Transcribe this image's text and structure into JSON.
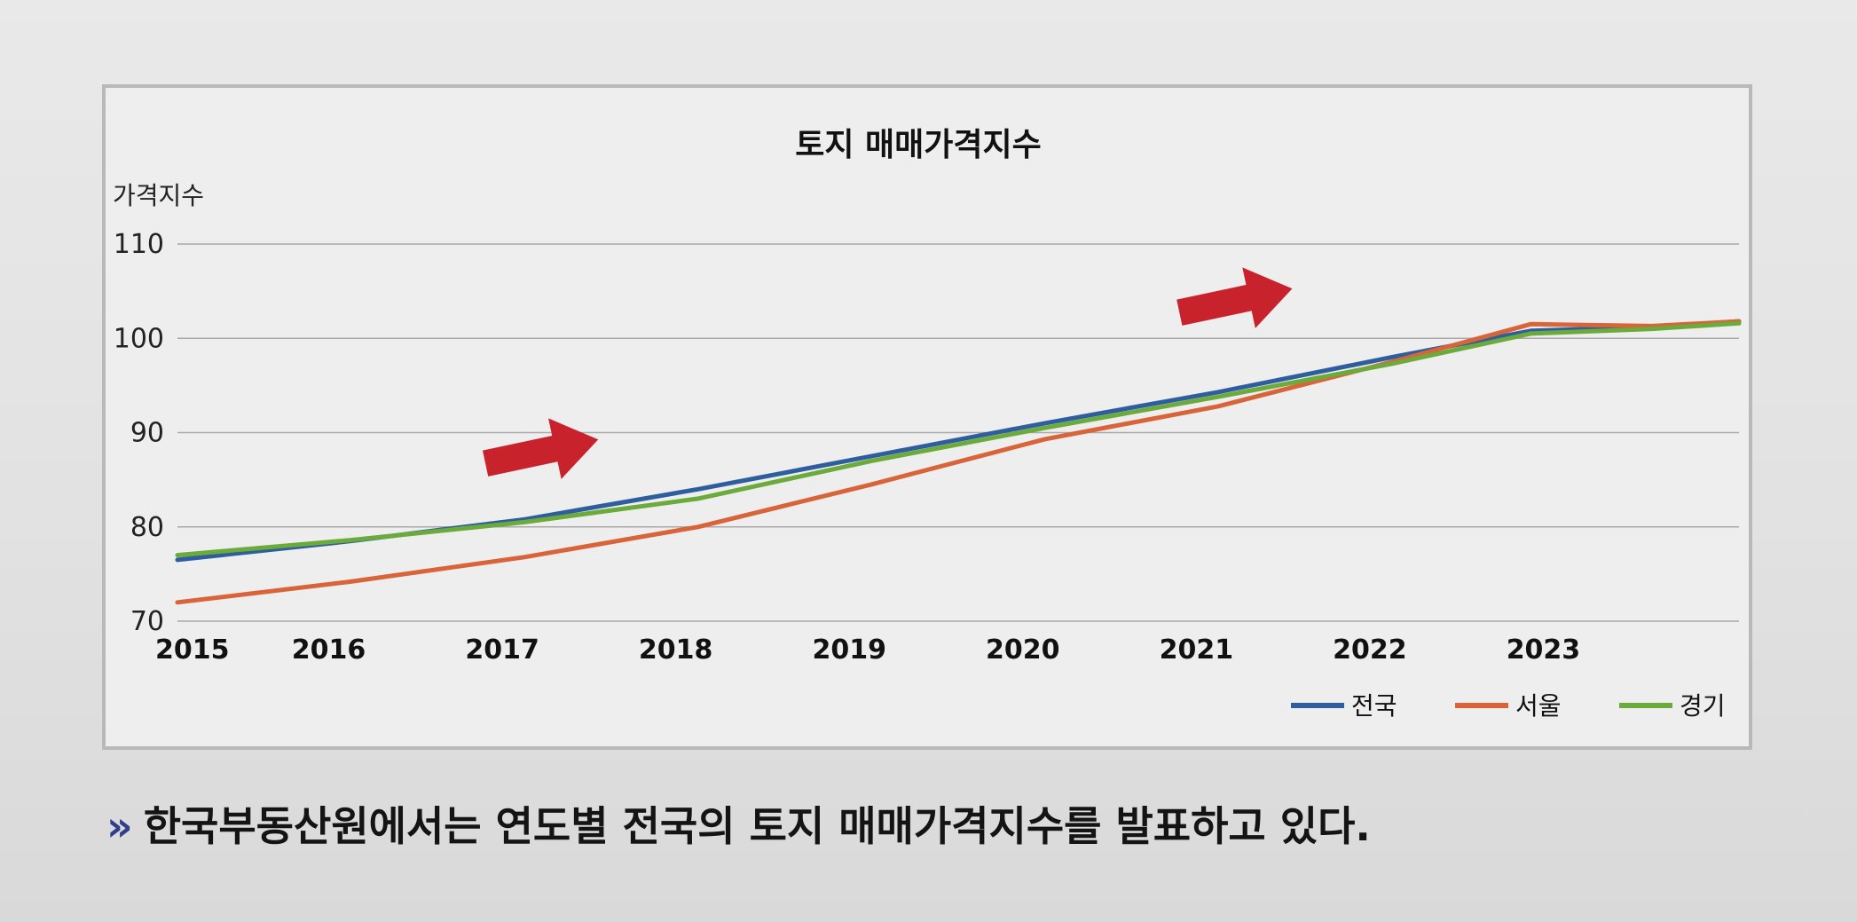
{
  "caption": {
    "marker": "»",
    "text": "한국부동산원에서는 연도별 전국의 토지 매매가격지수를 발표하고 있다."
  },
  "chart_data": {
    "type": "line",
    "title": "토지 매매가격지수",
    "ylabel": "가격지수",
    "xlabel": "",
    "ylim": [
      70,
      110
    ],
    "yticks": [
      70,
      80,
      90,
      100,
      110
    ],
    "xlim": [
      2015,
      2024
    ],
    "xticks": [
      2015,
      2016,
      2017,
      2018,
      2019,
      2020,
      2021,
      2022,
      2023
    ],
    "grid": true,
    "legend": "bottom-right",
    "series": [
      {
        "name": "전국",
        "color": "#2f5e9e",
        "x": [
          2015,
          2016,
          2017,
          2018,
          2019,
          2020,
          2021,
          2022,
          2022.8,
          2023.5,
          2024
        ],
        "y": [
          76.5,
          78.5,
          80.8,
          84.0,
          87.5,
          91.0,
          94.3,
          98.0,
          100.8,
          101.2,
          101.8
        ]
      },
      {
        "name": "서울",
        "color": "#d9643a",
        "x": [
          2015,
          2016,
          2017,
          2018,
          2019,
          2020,
          2021,
          2022,
          2022.8,
          2023.5,
          2024
        ],
        "y": [
          72.0,
          74.2,
          76.8,
          80.0,
          84.5,
          89.3,
          92.8,
          97.5,
          101.5,
          101.3,
          101.8
        ]
      },
      {
        "name": "경기",
        "color": "#6aab3c",
        "x": [
          2015,
          2016,
          2017,
          2018,
          2019,
          2020,
          2021,
          2022,
          2022.8,
          2023.5,
          2024
        ],
        "y": [
          77.0,
          78.6,
          80.5,
          83.0,
          87.0,
          90.5,
          93.8,
          97.3,
          100.5,
          101.0,
          101.6
        ]
      }
    ],
    "annotations": [
      {
        "type": "arrow",
        "color": "#c8232c",
        "x": 2017.1,
        "y": 88.0
      },
      {
        "type": "arrow",
        "color": "#c8232c",
        "x": 2021.1,
        "y": 104.0
      }
    ]
  }
}
